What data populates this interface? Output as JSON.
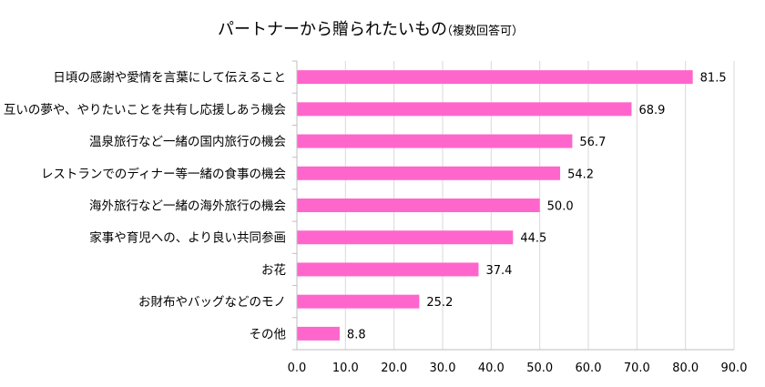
{
  "chart_data": {
    "type": "bar",
    "orientation": "horizontal",
    "title": "パートナーから贈られたいもの",
    "title_note": "（複数回答可）",
    "categories": [
      "日頃の感謝や愛情を言葉にして伝えること",
      "互いの夢や、やりたいことを共有し応援しあう機会",
      "温泉旅行など一緒の国内旅行の機会",
      "レストランでのディナー等一緒の食事の機会",
      "海外旅行など一緒の海外旅行の機会",
      "家事や育児への、より良い共同参画",
      "お花",
      "お財布やバッグなどのモノ",
      "その他"
    ],
    "values": [
      81.5,
      68.9,
      56.7,
      54.2,
      50.0,
      44.5,
      37.4,
      25.2,
      8.8
    ],
    "value_labels": [
      "81.5",
      "68.9",
      "56.7",
      "54.2",
      "50.0",
      "44.5",
      "37.4",
      "25.2",
      "8.8"
    ],
    "xlim": [
      0,
      90
    ],
    "x_ticks": [
      "0.0",
      "10.0",
      "20.0",
      "30.0",
      "40.0",
      "50.0",
      "60.0",
      "70.0",
      "80.0",
      "90.0"
    ],
    "grid": true,
    "colors": {
      "bar": "#ff66cc",
      "grid": "#d9d9d9",
      "axis": "#bfbfbf"
    }
  }
}
